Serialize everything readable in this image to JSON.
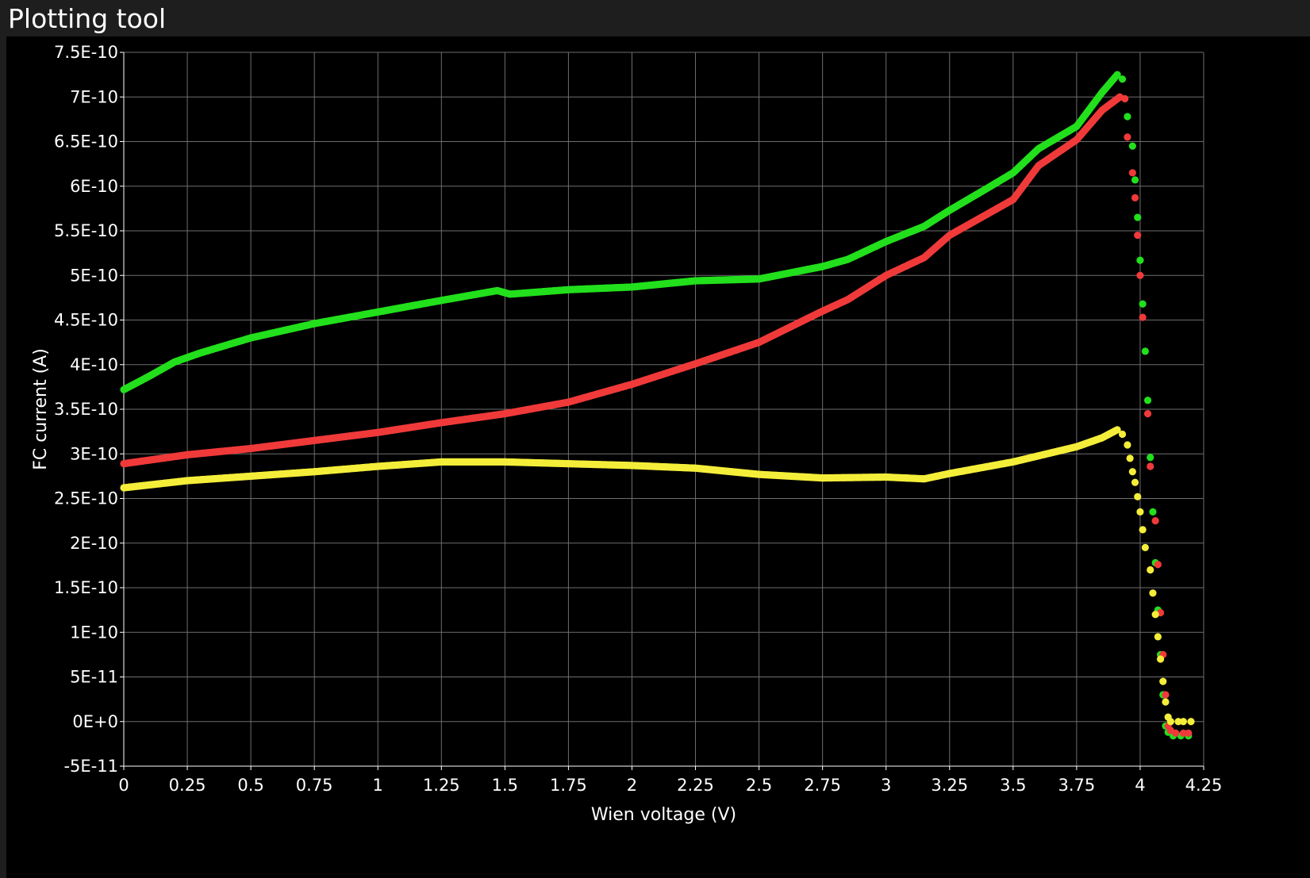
{
  "window": {
    "title": "Plotting tool"
  },
  "colors": {
    "background": "#000000",
    "grid": "#6e6e6e",
    "axis_text": "#ffffff",
    "green": "#22e01c",
    "red": "#f03a3a",
    "yellow": "#f4ee3a"
  },
  "chart_data": {
    "type": "scatter",
    "title": "",
    "xlabel": "Wien voltage (V)",
    "ylabel": "FC current (A)",
    "xlim": [
      0,
      4.25
    ],
    "ylim": [
      -5e-11,
      7.5e-10
    ],
    "grid": true,
    "legend": "none",
    "x_ticks": [
      {
        "value": 0,
        "label": "0"
      },
      {
        "value": 0.25,
        "label": "0.25"
      },
      {
        "value": 0.5,
        "label": "0.5"
      },
      {
        "value": 0.75,
        "label": "0.75"
      },
      {
        "value": 1,
        "label": "1"
      },
      {
        "value": 1.25,
        "label": "1.25"
      },
      {
        "value": 1.5,
        "label": "1.5"
      },
      {
        "value": 1.75,
        "label": "1.75"
      },
      {
        "value": 2,
        "label": "2"
      },
      {
        "value": 2.25,
        "label": "2.25"
      },
      {
        "value": 2.5,
        "label": "2.5"
      },
      {
        "value": 2.75,
        "label": "2.75"
      },
      {
        "value": 3,
        "label": "3"
      },
      {
        "value": 3.25,
        "label": "3.25"
      },
      {
        "value": 3.5,
        "label": "3.5"
      },
      {
        "value": 3.75,
        "label": "3.75"
      },
      {
        "value": 4,
        "label": "4"
      },
      {
        "value": 4.25,
        "label": "4.25"
      }
    ],
    "y_ticks": [
      {
        "value": 7.5e-10,
        "label": "7.5E-10"
      },
      {
        "value": 7e-10,
        "label": "7E-10"
      },
      {
        "value": 6.5e-10,
        "label": "6.5E-10"
      },
      {
        "value": 6e-10,
        "label": "6E-10"
      },
      {
        "value": 5.5e-10,
        "label": "5.5E-10"
      },
      {
        "value": 5e-10,
        "label": "5E-10"
      },
      {
        "value": 4.5e-10,
        "label": "4.5E-10"
      },
      {
        "value": 4e-10,
        "label": "4E-10"
      },
      {
        "value": 3.5e-10,
        "label": "3.5E-10"
      },
      {
        "value": 3e-10,
        "label": "3E-10"
      },
      {
        "value": 2.5e-10,
        "label": "2.5E-10"
      },
      {
        "value": 2e-10,
        "label": "2E-10"
      },
      {
        "value": 1.5e-10,
        "label": "1.5E-10"
      },
      {
        "value": 1e-10,
        "label": "1E-10"
      },
      {
        "value": 5e-11,
        "label": "5E-11"
      },
      {
        "value": 0,
        "label": "0E+0"
      },
      {
        "value": -5e-11,
        "label": "-5E-11"
      }
    ],
    "series": [
      {
        "color": "#22e01c",
        "points": [
          [
            0,
            3.72e-10
          ],
          [
            0.1,
            3.87e-10
          ],
          [
            0.2,
            4.03e-10
          ],
          [
            0.3,
            4.13e-10
          ],
          [
            0.5,
            4.3e-10
          ],
          [
            0.75,
            4.46e-10
          ],
          [
            1.0,
            4.59e-10
          ],
          [
            1.25,
            4.72e-10
          ],
          [
            1.47,
            4.83e-10
          ],
          [
            1.52,
            4.79e-10
          ],
          [
            1.75,
            4.84e-10
          ],
          [
            2.0,
            4.87e-10
          ],
          [
            2.25,
            4.94e-10
          ],
          [
            2.5,
            4.96e-10
          ],
          [
            2.75,
            5.1e-10
          ],
          [
            2.85,
            5.18e-10
          ],
          [
            3.0,
            5.38e-10
          ],
          [
            3.15,
            5.55e-10
          ],
          [
            3.25,
            5.73e-10
          ],
          [
            3.4,
            5.98e-10
          ],
          [
            3.5,
            6.15e-10
          ],
          [
            3.6,
            6.42e-10
          ],
          [
            3.75,
            6.67e-10
          ],
          [
            3.85,
            7.05e-10
          ],
          [
            3.91,
            7.25e-10
          ],
          [
            3.93,
            7.2e-10
          ],
          [
            3.95,
            6.78e-10
          ],
          [
            3.97,
            6.45e-10
          ],
          [
            3.98,
            6.07e-10
          ],
          [
            3.99,
            5.65e-10
          ],
          [
            4.0,
            5.17e-10
          ],
          [
            4.01,
            4.68e-10
          ],
          [
            4.02,
            4.15e-10
          ],
          [
            4.03,
            3.6e-10
          ],
          [
            4.04,
            2.96e-10
          ],
          [
            4.05,
            2.35e-10
          ],
          [
            4.06,
            1.78e-10
          ],
          [
            4.07,
            1.25e-10
          ],
          [
            4.08,
            7.5e-11
          ],
          [
            4.09,
            3e-11
          ],
          [
            4.1,
            -5e-12
          ],
          [
            4.11,
            -1.2e-11
          ],
          [
            4.13,
            -1.6e-11
          ],
          [
            4.16,
            -1.6e-11
          ],
          [
            4.19,
            -1.6e-11
          ]
        ]
      },
      {
        "color": "#f03a3a",
        "points": [
          [
            0,
            2.89e-10
          ],
          [
            0.25,
            2.99e-10
          ],
          [
            0.5,
            3.06e-10
          ],
          [
            0.75,
            3.15e-10
          ],
          [
            1.0,
            3.24e-10
          ],
          [
            1.25,
            3.35e-10
          ],
          [
            1.5,
            3.45e-10
          ],
          [
            1.75,
            3.58e-10
          ],
          [
            2.0,
            3.78e-10
          ],
          [
            2.25,
            4.01e-10
          ],
          [
            2.5,
            4.25e-10
          ],
          [
            2.75,
            4.6e-10
          ],
          [
            2.85,
            4.73e-10
          ],
          [
            3.0,
            5e-10
          ],
          [
            3.15,
            5.2e-10
          ],
          [
            3.25,
            5.45e-10
          ],
          [
            3.5,
            5.85e-10
          ],
          [
            3.6,
            6.23e-10
          ],
          [
            3.75,
            6.52e-10
          ],
          [
            3.85,
            6.85e-10
          ],
          [
            3.92,
            7e-10
          ],
          [
            3.94,
            6.98e-10
          ],
          [
            3.95,
            6.55e-10
          ],
          [
            3.97,
            6.15e-10
          ],
          [
            3.98,
            5.87e-10
          ],
          [
            3.99,
            5.45e-10
          ],
          [
            4.0,
            5e-10
          ],
          [
            4.01,
            4.53e-10
          ],
          [
            4.03,
            3.45e-10
          ],
          [
            4.04,
            2.86e-10
          ],
          [
            4.06,
            2.25e-10
          ],
          [
            4.07,
            1.76e-10
          ],
          [
            4.08,
            1.22e-10
          ],
          [
            4.09,
            7.5e-11
          ],
          [
            4.1,
            3e-11
          ],
          [
            4.11,
            -5e-12
          ],
          [
            4.12,
            -1e-11
          ],
          [
            4.14,
            -1.3e-11
          ],
          [
            4.17,
            -1.3e-11
          ],
          [
            4.19,
            -1.3e-11
          ]
        ]
      },
      {
        "color": "#f4ee3a",
        "points": [
          [
            0,
            2.62e-10
          ],
          [
            0.25,
            2.7e-10
          ],
          [
            0.5,
            2.75e-10
          ],
          [
            0.75,
            2.8e-10
          ],
          [
            1.0,
            2.86e-10
          ],
          [
            1.25,
            2.91e-10
          ],
          [
            1.5,
            2.91e-10
          ],
          [
            1.75,
            2.89e-10
          ],
          [
            2.0,
            2.87e-10
          ],
          [
            2.25,
            2.84e-10
          ],
          [
            2.5,
            2.77e-10
          ],
          [
            2.75,
            2.73e-10
          ],
          [
            3.0,
            2.74e-10
          ],
          [
            3.15,
            2.72e-10
          ],
          [
            3.25,
            2.78e-10
          ],
          [
            3.5,
            2.91e-10
          ],
          [
            3.75,
            3.08e-10
          ],
          [
            3.85,
            3.18e-10
          ],
          [
            3.91,
            3.27e-10
          ],
          [
            3.93,
            3.22e-10
          ],
          [
            3.95,
            3.1e-10
          ],
          [
            3.96,
            2.95e-10
          ],
          [
            3.97,
            2.8e-10
          ],
          [
            3.98,
            2.68e-10
          ],
          [
            3.99,
            2.52e-10
          ],
          [
            4.0,
            2.35e-10
          ],
          [
            4.01,
            2.15e-10
          ],
          [
            4.02,
            1.95e-10
          ],
          [
            4.04,
            1.7e-10
          ],
          [
            4.05,
            1.44e-10
          ],
          [
            4.06,
            1.2e-10
          ],
          [
            4.07,
            9.5e-11
          ],
          [
            4.08,
            7e-11
          ],
          [
            4.09,
            4.5e-11
          ],
          [
            4.1,
            2.2e-11
          ],
          [
            4.11,
            5e-12
          ],
          [
            4.12,
            0
          ],
          [
            4.15,
            0
          ],
          [
            4.17,
            0
          ],
          [
            4.2,
            0
          ]
        ]
      }
    ]
  }
}
